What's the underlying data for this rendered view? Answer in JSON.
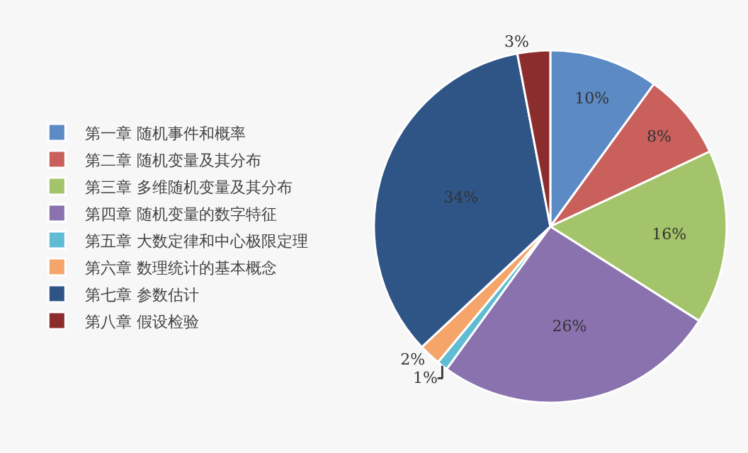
{
  "chart_data": {
    "type": "pie",
    "categories": [
      "第一章 随机事件和概率",
      "第二章 随机变量及其分布",
      "第三章 多维随机变量及其分布",
      "第四章 随机变量的数字特征",
      "第五章 大数定律和中心极限定理",
      "第六章 数理统计的基本概念",
      "第七章 参数估计",
      "第八章 假设检验"
    ],
    "values": [
      10,
      8,
      16,
      26,
      1,
      2,
      34,
      3
    ],
    "value_labels": [
      "10%",
      "8%",
      "16%",
      "26%",
      "1%",
      "2%",
      "34%",
      "3%"
    ],
    "colors": [
      "#5b8ac4",
      "#c9605c",
      "#a3c46a",
      "#8a72ae",
      "#5fbcd3",
      "#f5a46a",
      "#2f5587",
      "#8c2d2d"
    ],
    "legend": "left"
  }
}
